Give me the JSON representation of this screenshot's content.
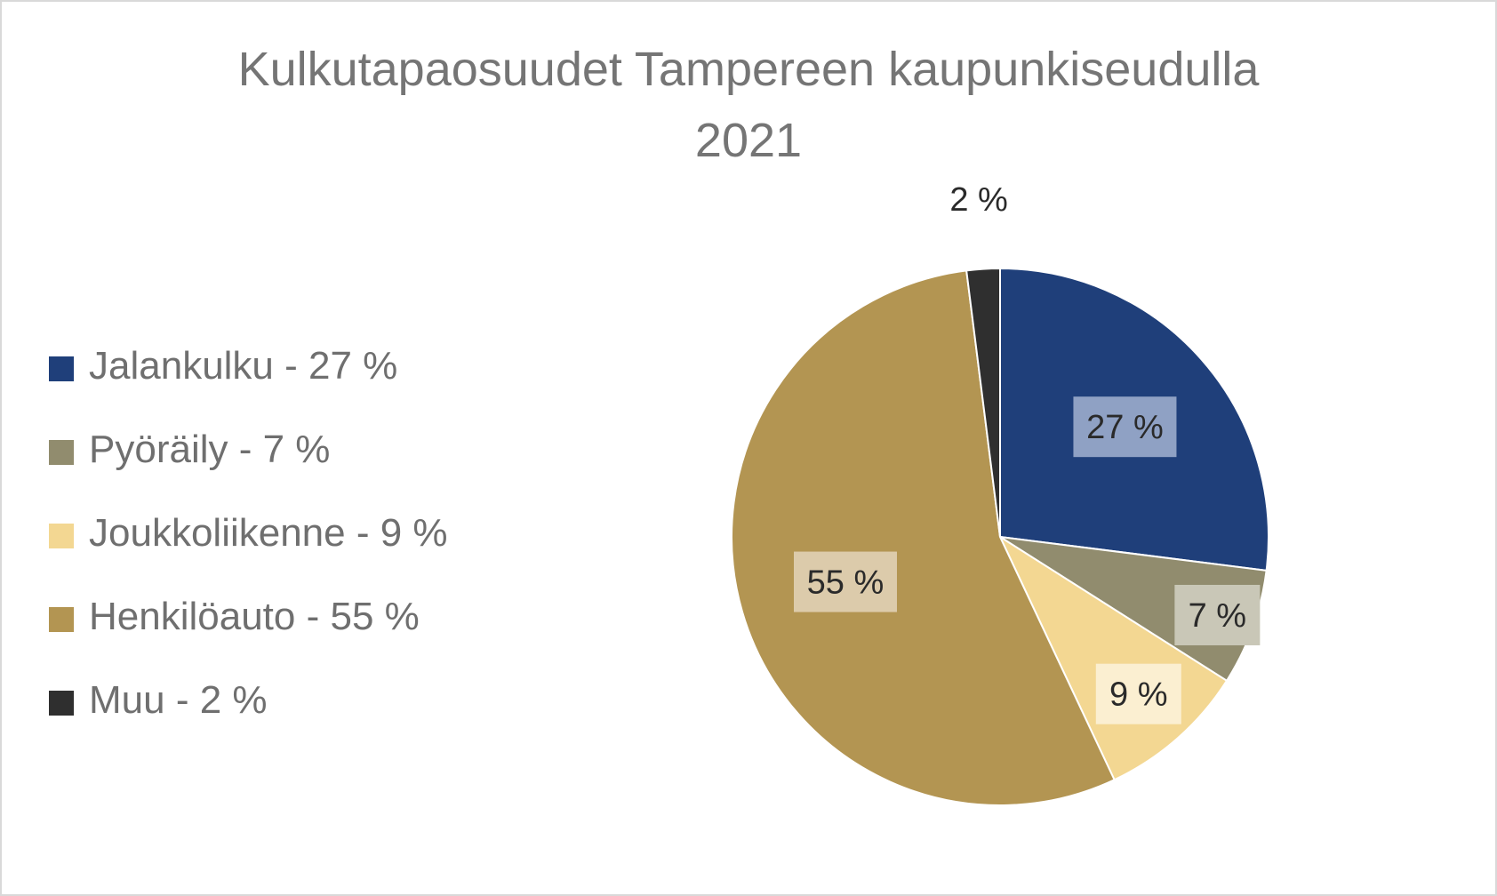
{
  "chart_data": {
    "type": "pie",
    "title": [
      "Kulkutapaosuudet Tampereen kaupunkiseudulla",
      "2021"
    ],
    "legend_position": "left",
    "slices": [
      {
        "legend": "Jalankulku - 27 %",
        "label": "27 %",
        "value": 27,
        "color": "#1f3f7a"
      },
      {
        "legend": "Pyöräily - 7 %",
        "label": "7 %",
        "value": 7,
        "color": "#918c6e"
      },
      {
        "legend": "Joukkoliikenne - 9 %",
        "label": "9 %",
        "value": 9,
        "color": "#f3d792"
      },
      {
        "legend": "Henkilöauto - 55 %",
        "label": "55 %",
        "value": 55,
        "color": "#b39552"
      },
      {
        "legend": "Muu - 2 %",
        "label": "2 %",
        "value": 2,
        "color": "#2f2f2f"
      }
    ]
  }
}
